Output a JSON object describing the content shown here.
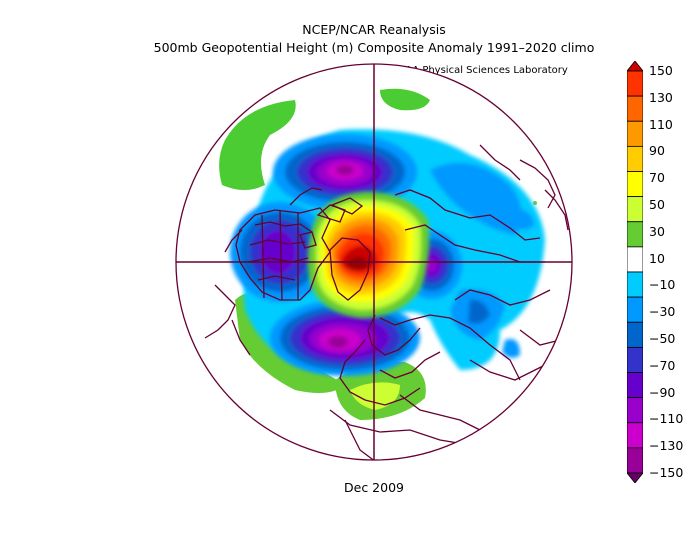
{
  "title": "NCEP/NCAR Reanalysis",
  "subtitle": "500mb Geopotential Height (m) Composite Anomaly 1991–2020 climo",
  "attribution": "NOAA Physical Sciences Laboratory",
  "date_label": "Dec 2009",
  "colorbar": {
    "labels": [
      "150",
      "130",
      "110",
      "90",
      "70",
      "50",
      "30",
      "10",
      "−10",
      "−30",
      "−50",
      "−70",
      "−90",
      "−110",
      "−130",
      "−150"
    ],
    "colors": [
      "#cc0000",
      "#ff3300",
      "#ff6600",
      "#ff9900",
      "#ffcc00",
      "#ffff00",
      "#ccff33",
      "#66cc33",
      "#ffffff",
      "#00ccff",
      "#0099ff",
      "#0066cc",
      "#3333cc",
      "#6600cc",
      "#9900cc",
      "#cc00cc",
      "#990099",
      "#660066"
    ]
  }
}
